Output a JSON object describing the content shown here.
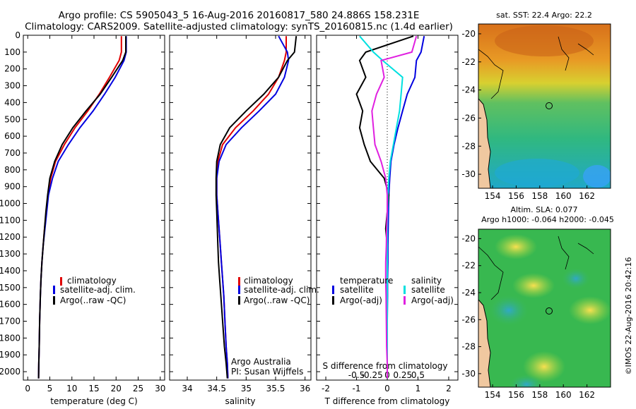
{
  "title": {
    "line1": "Argo profile: CS 5905043_5 16-Aug-2016 20160817_580 24.886S 158.231E",
    "line2": "Climatology: CARS2009. Satellite-adjusted climatology: synTS_20160815.nc (1.4d earlier)"
  },
  "colors": {
    "climatology": "#e00000",
    "satellite": "#0000e0",
    "argo": "#000000",
    "sat_salinity": "#00e0e0",
    "argo_salinity": "#e020e0",
    "land": "#f0c8a0"
  },
  "chart_data": [
    {
      "type": "line",
      "name": "temperature-profile",
      "xlabel": "temperature (deg C)",
      "ylabel": "",
      "xlim": [
        -1,
        31
      ],
      "ylim": [
        2050,
        0
      ],
      "xticks": [
        "0",
        "5",
        "10",
        "15",
        "20",
        "25",
        "30"
      ],
      "xtick_values": [
        0,
        5,
        10,
        15,
        20,
        25,
        30
      ],
      "yticks": [
        "0",
        "100",
        "200",
        "300",
        "400",
        "500",
        "600",
        "700",
        "800",
        "900",
        "1000",
        "1100",
        "1200",
        "1300",
        "1400",
        "1500",
        "1600",
        "1700",
        "1800",
        "1900",
        "2000"
      ],
      "ytick_values": [
        0,
        100,
        200,
        300,
        400,
        500,
        600,
        700,
        800,
        900,
        1000,
        1100,
        1200,
        1300,
        1400,
        1500,
        1600,
        1700,
        1800,
        1900,
        2000
      ],
      "legend": [
        "climatology",
        "satellite-adj. clim.",
        "Argo(..raw -QC)"
      ],
      "series": [
        {
          "name": "climatology",
          "color": "#e00000",
          "x": [
            21.2,
            21.2,
            20.7,
            18.5,
            16.2,
            13.6,
            10.7,
            8.3,
            6.3,
            5.2,
            4.6,
            4.2,
            3.8,
            3.5,
            3.2,
            3.0,
            2.85,
            2.7,
            2.6,
            2.5,
            2.45
          ],
          "y": [
            5,
            100,
            150,
            250,
            350,
            450,
            550,
            650,
            750,
            850,
            950,
            1050,
            1150,
            1250,
            1350,
            1450,
            1550,
            1700,
            1850,
            1950,
            2040
          ]
        },
        {
          "name": "satellite-adj. clim.",
          "color": "#0000e0",
          "x": [
            22.3,
            22.3,
            21.8,
            19.8,
            17.4,
            14.8,
            11.8,
            9.2,
            6.9,
            5.6,
            4.7,
            4.3,
            3.9,
            3.5,
            3.2,
            3.0,
            2.85,
            2.7,
            2.6,
            2.5,
            2.45
          ],
          "y": [
            5,
            100,
            150,
            250,
            350,
            450,
            550,
            650,
            750,
            850,
            950,
            1050,
            1150,
            1250,
            1350,
            1450,
            1550,
            1700,
            1850,
            1950,
            2040
          ]
        },
        {
          "name": "Argo(..raw -QC)",
          "color": "#000000",
          "x": [
            22.2,
            22.2,
            21.5,
            19.0,
            16.4,
            13.2,
            10.2,
            7.8,
            6.1,
            5.0,
            4.5,
            4.1,
            3.8,
            3.5,
            3.2,
            3.0,
            2.85,
            2.7,
            2.6,
            2.5,
            2.45
          ],
          "y": [
            5,
            100,
            150,
            250,
            350,
            450,
            550,
            650,
            750,
            850,
            950,
            1050,
            1150,
            1250,
            1350,
            1450,
            1550,
            1700,
            1850,
            1950,
            2040
          ]
        }
      ]
    },
    {
      "type": "line",
      "name": "salinity-profile",
      "xlabel": "salinity",
      "xlim": [
        33.7,
        36.1
      ],
      "ylim": [
        2050,
        0
      ],
      "xticks": [
        "34",
        "34.5",
        "35",
        "35.5",
        "36"
      ],
      "xtick_values": [
        34,
        34.5,
        35,
        35.5,
        36
      ],
      "legend": [
        "climatology",
        "satellite-adj. clim.",
        "Argo(..raw -QC)"
      ],
      "annotation": [
        "Argo Australia",
        "PI: Susan Wijffels"
      ],
      "series": [
        {
          "name": "climatology",
          "color": "#e00000",
          "x": [
            35.68,
            35.68,
            35.65,
            35.55,
            35.38,
            35.12,
            34.82,
            34.6,
            34.52,
            34.5,
            34.5,
            34.52,
            34.54,
            34.56,
            34.58,
            34.6,
            34.62,
            34.64,
            34.66,
            34.68,
            34.69
          ],
          "y": [
            5,
            100,
            150,
            250,
            350,
            450,
            550,
            650,
            750,
            850,
            950,
            1050,
            1150,
            1250,
            1350,
            1450,
            1550,
            1700,
            1850,
            1950,
            2040
          ]
        },
        {
          "name": "satellite-adj. clim.",
          "color": "#0000e0",
          "x": [
            35.55,
            35.7,
            35.72,
            35.65,
            35.5,
            35.22,
            34.92,
            34.66,
            34.54,
            34.5,
            34.5,
            34.52,
            34.54,
            34.56,
            34.58,
            34.6,
            34.62,
            34.64,
            34.66,
            34.68,
            34.69
          ],
          "y": [
            5,
            100,
            150,
            250,
            350,
            450,
            550,
            650,
            750,
            850,
            950,
            1050,
            1150,
            1250,
            1350,
            1450,
            1550,
            1700,
            1850,
            1950,
            2040
          ]
        },
        {
          "name": "Argo(..raw -QC)",
          "color": "#000000",
          "x": [
            35.85,
            35.82,
            35.7,
            35.55,
            35.3,
            35.0,
            34.72,
            34.56,
            34.5,
            34.49,
            34.49,
            34.5,
            34.51,
            34.52,
            34.53,
            34.55,
            34.57,
            34.6,
            34.63,
            34.66,
            34.68
          ],
          "y": [
            5,
            100,
            150,
            250,
            350,
            450,
            550,
            650,
            750,
            850,
            950,
            1050,
            1150,
            1250,
            1350,
            1450,
            1550,
            1700,
            1850,
            1950,
            2040
          ]
        }
      ]
    },
    {
      "type": "line",
      "name": "difference-profile",
      "xlabel": "T difference from climatology",
      "xlabel_top": "S difference from climatology",
      "xlim": [
        -2.3,
        2.3
      ],
      "ylim": [
        2050,
        0
      ],
      "xticks": [
        "-2",
        "-1",
        "0",
        "1",
        "2"
      ],
      "xtick_values": [
        -2,
        -1,
        0,
        1,
        2
      ],
      "sticks": [
        "-0.5",
        "-0.25",
        "0",
        "0.25",
        "0.5"
      ],
      "stick_values": [
        -0.5,
        -0.25,
        0,
        0.25,
        0.5
      ],
      "legend_left_title": "temperature",
      "legend_right_title": "salinity",
      "legend": [
        "satellite",
        "Argo(-adj)",
        "satellite",
        "Argo(-adj)"
      ],
      "series": [
        {
          "name": "temperature satellite",
          "color": "#0000e0",
          "x": [
            1.2,
            1.1,
            0.95,
            0.9,
            0.65,
            0.5,
            0.35,
            0.22,
            0.12,
            0.08,
            0.05,
            0.04,
            0.03,
            0.02,
            0.02,
            0.01,
            0.01,
            0.0,
            0.0,
            0.0,
            0.0
          ],
          "y": [
            5,
            100,
            150,
            250,
            350,
            450,
            550,
            650,
            750,
            850,
            950,
            1050,
            1150,
            1250,
            1350,
            1450,
            1550,
            1700,
            1850,
            1950,
            2040
          ]
        },
        {
          "name": "temperature Argo(-adj)",
          "color": "#000000",
          "x": [
            0.85,
            -0.7,
            -0.9,
            -0.7,
            -1.0,
            -0.8,
            -0.9,
            -0.75,
            -0.55,
            -0.1,
            0.05,
            0.0,
            -0.05,
            0.0,
            0.0,
            0.0,
            0.0,
            0.0,
            0.0,
            0.0,
            0.0
          ],
          "y": [
            5,
            100,
            150,
            250,
            350,
            450,
            550,
            650,
            750,
            850,
            950,
            1050,
            1150,
            1250,
            1350,
            1450,
            1550,
            1700,
            1850,
            1950,
            2040
          ]
        },
        {
          "name": "salinity satellite",
          "color": "#00e0e0",
          "x": [
            -0.9,
            -0.45,
            -0.15,
            0.5,
            0.45,
            0.4,
            0.3,
            0.2,
            0.1,
            0.05,
            0.02,
            0.01,
            0.0,
            0.0,
            0.0,
            0.0,
            0.0,
            0.0,
            0.0,
            0.0,
            0.0
          ],
          "y": [
            5,
            100,
            150,
            250,
            350,
            450,
            550,
            650,
            750,
            850,
            950,
            1050,
            1150,
            1250,
            1350,
            1450,
            1550,
            1700,
            1850,
            1950,
            2040
          ]
        },
        {
          "name": "salinity Argo(-adj)",
          "color": "#e020e0",
          "x": [
            0.95,
            0.8,
            -0.2,
            -0.1,
            -0.35,
            -0.5,
            -0.45,
            -0.4,
            -0.2,
            -0.05,
            0.0,
            0.0,
            -0.02,
            -0.03,
            -0.05,
            -0.05,
            -0.04,
            -0.03,
            -0.02,
            0.0,
            0.0
          ],
          "y": [
            5,
            100,
            150,
            250,
            350,
            450,
            550,
            650,
            750,
            850,
            950,
            1050,
            1150,
            1250,
            1350,
            1450,
            1550,
            1700,
            1850,
            1950,
            2040
          ]
        }
      ]
    },
    {
      "type": "heatmap",
      "name": "sst-map",
      "title": "sat. SST: 22.4 Argo: 22.2",
      "xlim": [
        152.8,
        164.0
      ],
      "ylim": [
        -31.0,
        -19.3
      ],
      "xticks": [
        "154",
        "156",
        "158",
        "160",
        "162"
      ],
      "xtick_values": [
        154,
        156,
        158,
        160,
        162
      ],
      "yticks": [
        "-20",
        "-22",
        "-24",
        "-26",
        "-28",
        "-30"
      ],
      "ytick_values": [
        -20,
        -22,
        -24,
        -26,
        -28,
        -30
      ],
      "marker": {
        "lon": 158.231,
        "lat": -24.886
      }
    },
    {
      "type": "heatmap",
      "name": "sla-map",
      "title": "Altim. SLA: 0.077",
      "subtitle": "Argo h1000: -0.064 h2000: -0.045",
      "xlim": [
        152.8,
        164.0
      ],
      "ylim": [
        -31.0,
        -19.3
      ],
      "xticks": [
        "154",
        "156",
        "158",
        "160",
        "162"
      ],
      "xtick_values": [
        154,
        156,
        158,
        160,
        162
      ],
      "yticks": [
        "-20",
        "-22",
        "-24",
        "-26",
        "-28",
        "-30"
      ],
      "ytick_values": [
        -20,
        -22,
        -24,
        -26,
        -28,
        -30
      ],
      "marker": {
        "lon": 158.231,
        "lat": -24.886
      }
    }
  ],
  "credit": "©IMOS 22-Aug-2016 20:42:16"
}
